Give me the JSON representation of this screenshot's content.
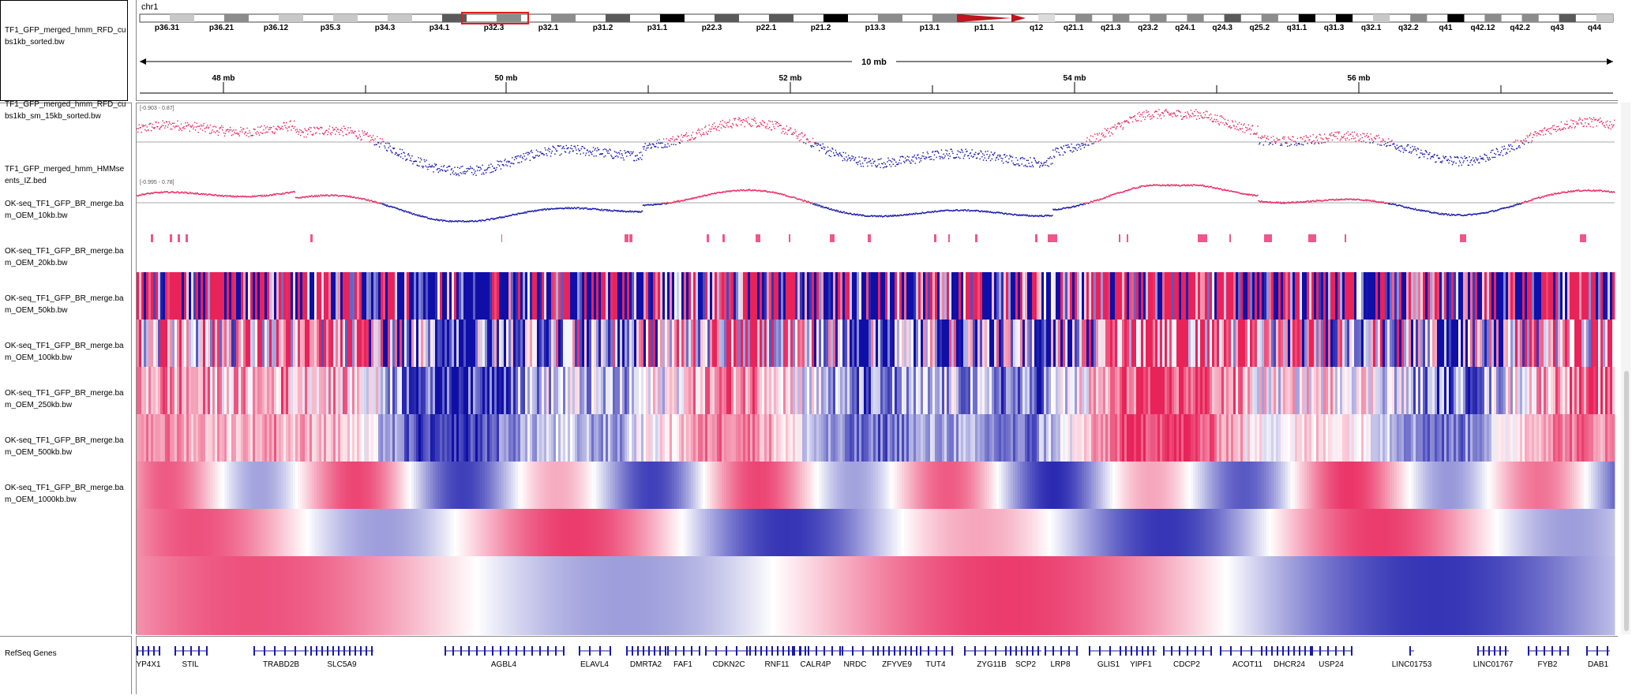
{
  "chromosome": "chr1",
  "scale_label": "10 mb",
  "cytobands": [
    {
      "name": "p36.31",
      "stain": "gpos25"
    },
    {
      "name": "p36.21",
      "stain": "gpos50"
    },
    {
      "name": "p36.12",
      "stain": "gpos25"
    },
    {
      "name": "p35.3",
      "stain": "gpos25"
    },
    {
      "name": "p34.3",
      "stain": "gpos25"
    },
    {
      "name": "p34.1",
      "stain": "gpos75"
    },
    {
      "name": "p32.3",
      "stain": "gpos50"
    },
    {
      "name": "p32.1",
      "stain": "gpos50"
    },
    {
      "name": "p31.2",
      "stain": "gpos75"
    },
    {
      "name": "p31.1",
      "stain": "gpos100"
    },
    {
      "name": "p22.3",
      "stain": "gpos75"
    },
    {
      "name": "p22.1",
      "stain": "gpos75"
    },
    {
      "name": "p21.2",
      "stain": "gpos100"
    },
    {
      "name": "p13.3",
      "stain": "gpos50"
    },
    {
      "name": "p13.1",
      "stain": "gpos50"
    },
    {
      "name": "p11.1",
      "stain": "acen"
    },
    {
      "name": "q12",
      "stain": "gvar"
    },
    {
      "name": "q21.1",
      "stain": "gpos50"
    },
    {
      "name": "q21.3",
      "stain": "gpos50"
    },
    {
      "name": "q23.2",
      "stain": "gpos50"
    },
    {
      "name": "q24.1",
      "stain": "gpos50"
    },
    {
      "name": "q24.3",
      "stain": "gpos75"
    },
    {
      "name": "q25.2",
      "stain": "gpos50"
    },
    {
      "name": "q31.1",
      "stain": "gpos100"
    },
    {
      "name": "q31.3",
      "stain": "gpos100"
    },
    {
      "name": "q32.1",
      "stain": "gpos25"
    },
    {
      "name": "q32.2",
      "stain": "gpos50"
    },
    {
      "name": "q41",
      "stain": "gpos100"
    },
    {
      "name": "q42.12",
      "stain": "gpos50"
    },
    {
      "name": "q42.2",
      "stain": "gpos50"
    },
    {
      "name": "q43",
      "stain": "gpos75"
    },
    {
      "name": "q44",
      "stain": "gpos25"
    }
  ],
  "ruler_ticks": [
    "48 mb",
    "50 mb",
    "52 mb",
    "54 mb",
    "56 mb"
  ],
  "colors": {
    "forward": "#e8235a",
    "reverse": "#0f0fa8",
    "gene": "#1a1aa8",
    "highlight": "#e31b1b"
  },
  "tracks": [
    {
      "id": "rfd-1kb",
      "name": "TF1_GFP_merged_hmm_RFD_cu\nbs1kb_sorted.bw",
      "range": "[-0.903 - 0.87]"
    },
    {
      "id": "rfd-15kb",
      "name": "TF1_GFP_merged_hmm_RFD_cu\nbs1kb_sm_15kb_sorted.bw",
      "range": "[-0.995 - 0.78]"
    },
    {
      "id": "iz-bed",
      "name": "TF1_GFP_merged_hmm_HMMse\nents_IZ.bed"
    },
    {
      "id": "oem-10kb",
      "name": "OK-seq_TF1_GFP_BR_merge.ba\nm_OEM_10kb.bw"
    },
    {
      "id": "oem-20kb",
      "name": "OK-seq_TF1_GFP_BR_merge.ba\nm_OEM_20kb.bw"
    },
    {
      "id": "oem-50kb",
      "name": "OK-seq_TF1_GFP_BR_merge.ba\nm_OEM_50kb.bw"
    },
    {
      "id": "oem-100kb",
      "name": "OK-seq_TF1_GFP_BR_merge.ba\nm_OEM_100kb.bw"
    },
    {
      "id": "oem-250kb",
      "name": "OK-seq_TF1_GFP_BR_merge.ba\nm_OEM_250kb.bw"
    },
    {
      "id": "oem-500kb",
      "name": "OK-seq_TF1_GFP_BR_merge.ba\nm_OEM_500kb.bw"
    },
    {
      "id": "oem-1000kb",
      "name": "OK-seq_TF1_GFP_BR_merge.ba\nm_OEM_1000kb.bw"
    }
  ],
  "genes_track_name": "RefSeq Genes",
  "genes": [
    "YP4X1",
    "STIL",
    "TRABD2B",
    "SLC5A9",
    "AGBL4",
    "ELAVL4",
    "DMRTA2",
    "FAF1",
    "CDKN2C",
    "RNF11",
    "CALR4P",
    "NRDC",
    "ZFYVE9",
    "TUT4",
    "ZYG11B",
    "SCP2",
    "LRP8",
    "GLIS1",
    "YIPF1",
    "CDCP2",
    "ACOT11",
    "DHCR24",
    "USP24",
    "LINC01753",
    "LINC01767",
    "FYB2",
    "DAB1"
  ]
}
